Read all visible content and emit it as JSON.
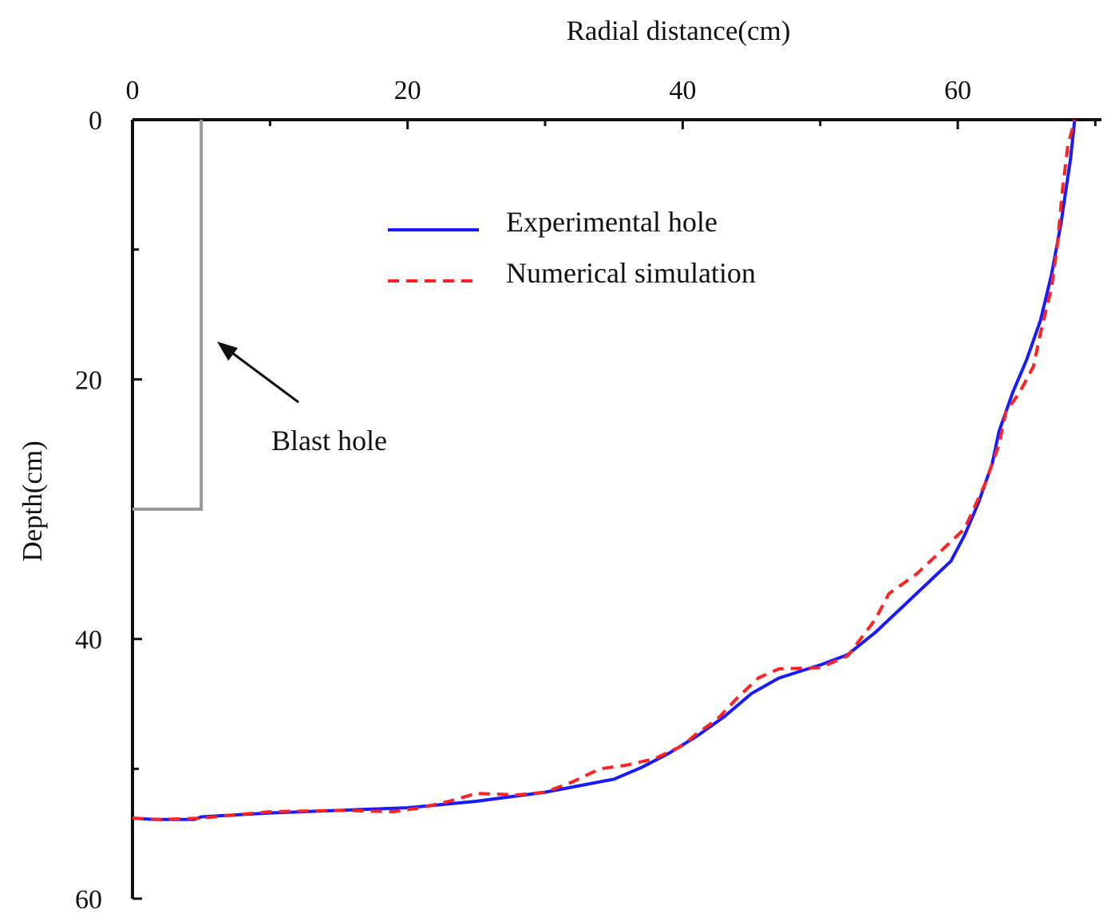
{
  "chart_data": {
    "type": "line",
    "title": "",
    "xlabel": "Radial distance(cm)",
    "ylabel": "Depth(cm)",
    "xlim": [
      0,
      71
    ],
    "ylim": [
      0,
      60
    ],
    "x_axis_position": "top",
    "y_inverted": true,
    "grid": false,
    "legend_position": "top-center",
    "xticks": [
      0,
      20,
      40,
      60
    ],
    "yticks": [
      0,
      20,
      40,
      60
    ],
    "xtick_labels": [
      "0",
      "20",
      "40",
      "60"
    ],
    "ytick_labels": [
      "0",
      "20",
      "40",
      "60"
    ],
    "series": [
      {
        "name": "Experimental hole",
        "color": "#1a1aff",
        "style": "solid",
        "points": [
          [
            0,
            53.8
          ],
          [
            1.5,
            53.9
          ],
          [
            4.5,
            53.9
          ],
          [
            5,
            53.7
          ],
          [
            10,
            53.4
          ],
          [
            15,
            53.2
          ],
          [
            20,
            53.0
          ],
          [
            25,
            52.5
          ],
          [
            30,
            51.8
          ],
          [
            35,
            50.8
          ],
          [
            37,
            49.9
          ],
          [
            39,
            48.8
          ],
          [
            41,
            47.5
          ],
          [
            43,
            46.0
          ],
          [
            45,
            44.2
          ],
          [
            47,
            43.0
          ],
          [
            50,
            42.0
          ],
          [
            52,
            41.2
          ],
          [
            54,
            39.5
          ],
          [
            56,
            37.5
          ],
          [
            58,
            35.5
          ],
          [
            59.5,
            34.0
          ],
          [
            60.5,
            32.0
          ],
          [
            61.5,
            29.5
          ],
          [
            62.5,
            26.5
          ],
          [
            63,
            24.0
          ],
          [
            64,
            21.0
          ],
          [
            65,
            18.5
          ],
          [
            66,
            15.5
          ],
          [
            66.8,
            12.0
          ],
          [
            67.5,
            8.0
          ],
          [
            68.2,
            3.0
          ],
          [
            68.5,
            0
          ]
        ]
      },
      {
        "name": "Numerical simulation",
        "color": "#ff2222",
        "style": "dashed",
        "points": [
          [
            0,
            53.8
          ],
          [
            2,
            53.9
          ],
          [
            5,
            53.8
          ],
          [
            10,
            53.3
          ],
          [
            15,
            53.2
          ],
          [
            19,
            53.3
          ],
          [
            21,
            53.0
          ],
          [
            23,
            52.5
          ],
          [
            25,
            51.9
          ],
          [
            28,
            52.0
          ],
          [
            30,
            51.8
          ],
          [
            32,
            51.0
          ],
          [
            34,
            50.0
          ],
          [
            36,
            49.7
          ],
          [
            38,
            49.2
          ],
          [
            40,
            48.2
          ],
          [
            41,
            47.3
          ],
          [
            42.5,
            46.2
          ],
          [
            44,
            44.5
          ],
          [
            45.5,
            43.0
          ],
          [
            47,
            42.3
          ],
          [
            50,
            42.2
          ],
          [
            52,
            41.3
          ],
          [
            54,
            38.5
          ],
          [
            55,
            36.5
          ],
          [
            57,
            35.0
          ],
          [
            59.5,
            32.5
          ],
          [
            60.5,
            31.5
          ],
          [
            62,
            28.0
          ],
          [
            63,
            25.0
          ],
          [
            63.5,
            22.5
          ],
          [
            64.5,
            21.0
          ],
          [
            65.5,
            19.0
          ],
          [
            66,
            16.5
          ],
          [
            66.8,
            13.0
          ],
          [
            67.2,
            10.0
          ],
          [
            67.6,
            5.5
          ],
          [
            68,
            2.0
          ],
          [
            68.5,
            0
          ]
        ]
      }
    ],
    "blast_hole": {
      "label": "Blast hole",
      "radius": 5,
      "depth": 30,
      "color": "#999999"
    }
  }
}
